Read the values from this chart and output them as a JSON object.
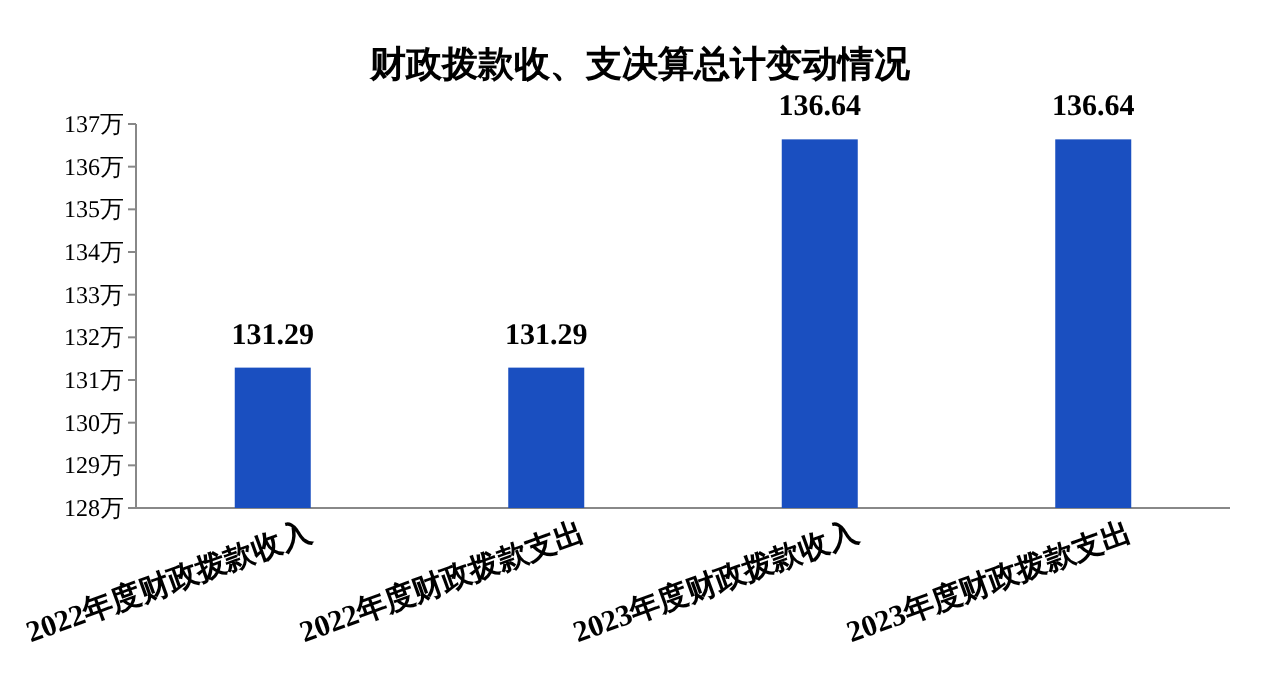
{
  "chart_data": {
    "type": "bar",
    "title": "财政拨款收、支决算总计变动情况",
    "categories": [
      "2022年度财政拨款收入",
      "2022年度财政拨款支出",
      "2023年度财政拨款收入",
      "2023年度财政拨款支出"
    ],
    "values": [
      131.29,
      131.29,
      136.64,
      136.64
    ],
    "color": "#1a4fc0",
    "data_labels": true,
    "grid": false,
    "ylim": [
      128,
      137
    ],
    "yticks": [
      {
        "value": 128,
        "label": "128万"
      },
      {
        "value": 129,
        "label": "129万"
      },
      {
        "value": 130,
        "label": "130万"
      },
      {
        "value": 131,
        "label": "131万"
      },
      {
        "value": 132,
        "label": "132万"
      },
      {
        "value": 133,
        "label": "133万"
      },
      {
        "value": 134,
        "label": "134万"
      },
      {
        "value": 135,
        "label": "135万"
      },
      {
        "value": 136,
        "label": "136万"
      },
      {
        "value": 137,
        "label": "137万"
      }
    ]
  }
}
